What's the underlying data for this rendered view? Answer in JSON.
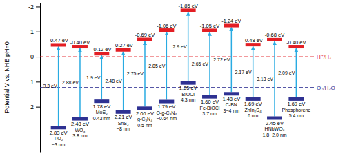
{
  "chart_data": {
    "type": "range",
    "y_label": "Potential V vs. NHE pH=0",
    "ylim": [
      -2.15,
      3.8
    ],
    "yticks": [
      -2,
      -1,
      0,
      1,
      2
    ],
    "categories": [
      "TiO₂",
      "WO₃",
      "MoS₂",
      "SnS₂",
      "g-C₃N₄",
      "O-g-C₃N₄",
      "BiOCl",
      "Fe-BiOCl",
      "C-BN",
      "ZnIn₂S₄",
      "HNbWO₆",
      "Phosphorene"
    ],
    "sizes": [
      "~3 nm",
      "3.8 nm",
      "0.43 nm",
      "~8 nm",
      "0.5 nm",
      "~0.64 nm",
      "4.3 nm",
      "3.7 nm",
      "3~4 nm",
      "6 nm",
      "1.8~2.0 nm",
      "5.4 nm"
    ],
    "cb": {
      "color": "#e31e24",
      "values": [
        -0.47,
        -0.4,
        -0.12,
        -0.27,
        -0.69,
        -1.06,
        -1.85,
        -1.05,
        -1.24,
        -0.48,
        -0.68,
        -0.4
      ],
      "value_labels": [
        "-0.47 eV",
        "-0.40 eV",
        "-0.12 eV",
        "-0.27 eV",
        "-0.69 eV",
        "-1.06 eV",
        "-1.85 eV",
        "-1.05 eV",
        "-1.24 eV",
        "-0.48 eV",
        "-0.68 eV",
        "-0.40 eV"
      ]
    },
    "vb": {
      "color": "#2e3192",
      "values": [
        2.83,
        2.48,
        1.78,
        2.21,
        2.06,
        1.79,
        1.05,
        1.6,
        1.48,
        1.69,
        2.45,
        1.69
      ],
      "value_labels": [
        "2.83 eV",
        "2.48 eV",
        "1.78 eV",
        "2.21 eV",
        "2.06 eV",
        "1.79 eV",
        "1.05 eV",
        "1.60 eV",
        "1.48 eV",
        "1.69 eV",
        "2.45 eV",
        "1.69 eV"
      ]
    },
    "band_gap": {
      "color": "#29abe2",
      "values": [
        3.3,
        2.88,
        1.9,
        2.48,
        2.75,
        2.85,
        2.9,
        2.65,
        2.72,
        2.17,
        3.13,
        2.09
      ],
      "value_labels": [
        "3.3 eV",
        "2.88 eV",
        "1.9 eV",
        "2.48 eV",
        "2.75 eV",
        "2.85 eV",
        "2.9 eV",
        "2.65 eV",
        "2.72 eV",
        "2.17 eV",
        "3.13 eV",
        "2.09 eV"
      ]
    },
    "reference_lines": [
      {
        "value": 0,
        "label": "H⁺/H₂",
        "color": "#e31e24"
      },
      {
        "value": 1.23,
        "label": "O₂/H₂O",
        "color": "#2e3192"
      }
    ]
  }
}
